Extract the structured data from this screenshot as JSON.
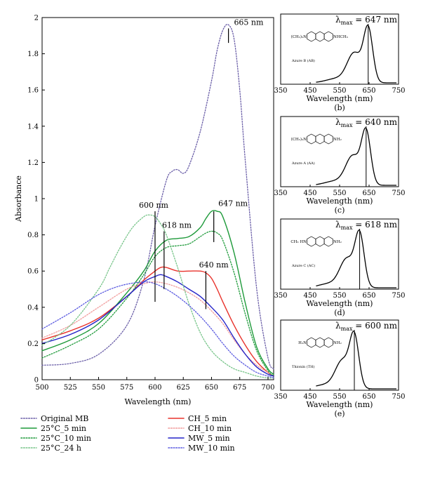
{
  "main_chart": {
    "type": "line",
    "xlabel": "Wavelength (nm)",
    "ylabel": "Absorbance",
    "xlim": [
      500,
      705
    ],
    "ylim": [
      0,
      2
    ],
    "xticks": [
      500,
      525,
      550,
      575,
      600,
      625,
      650,
      675,
      700
    ],
    "yticks": [
      0,
      0.2,
      0.4,
      0.6,
      0.8,
      1,
      1.2,
      1.4,
      1.6,
      1.8,
      2
    ],
    "xtick_labels": [
      "500",
      "525",
      "550",
      "575",
      "600",
      "625",
      "650",
      "675",
      "700"
    ],
    "ytick_labels": [
      "0",
      "0.2",
      "0.4",
      "0.6",
      "0.8",
      "1",
      "1.2",
      "1.4",
      "1.6",
      "1.8",
      "2"
    ],
    "annotations": [
      {
        "text": "665 nm",
        "x": 665,
        "y": 1.93
      },
      {
        "text": "647 nm",
        "x": 653,
        "y": 0.93
      },
      {
        "text": "600 nm",
        "x": 601,
        "y": 0.92
      },
      {
        "text": "618 nm",
        "x": 607,
        "y": 0.82
      },
      {
        "text": "640 nm",
        "x": 647,
        "y": 0.58
      }
    ],
    "series": [
      {
        "name": "Original MB",
        "color": "#6b5fa8",
        "style": "dotted",
        "x": [
          500,
          525,
          550,
          575,
          590,
          600,
          610,
          615,
          620,
          625,
          630,
          640,
          650,
          655,
          660,
          665,
          670,
          675,
          680,
          690,
          700,
          705
        ],
        "y": [
          0.08,
          0.09,
          0.14,
          0.3,
          0.55,
          0.85,
          1.1,
          1.15,
          1.16,
          1.14,
          1.18,
          1.37,
          1.65,
          1.82,
          1.93,
          1.96,
          1.88,
          1.6,
          1.2,
          0.5,
          0.12,
          0.06
        ]
      },
      {
        "name": "CH_5 min",
        "color": "#e8322b",
        "style": "solid",
        "x": [
          500,
          525,
          550,
          575,
          590,
          600,
          605,
          610,
          620,
          630,
          640,
          645,
          650,
          655,
          660,
          670,
          680,
          690,
          700,
          705
        ],
        "y": [
          0.22,
          0.27,
          0.34,
          0.46,
          0.55,
          0.6,
          0.62,
          0.62,
          0.6,
          0.6,
          0.6,
          0.59,
          0.56,
          0.5,
          0.43,
          0.3,
          0.19,
          0.1,
          0.04,
          0.02
        ]
      },
      {
        "name": "25°C_5 min",
        "color": "#1e9a3a",
        "style": "solid",
        "x": [
          500,
          525,
          550,
          575,
          590,
          600,
          610,
          620,
          630,
          640,
          645,
          650,
          655,
          660,
          670,
          680,
          690,
          700,
          705
        ],
        "y": [
          0.16,
          0.22,
          0.31,
          0.48,
          0.6,
          0.71,
          0.77,
          0.78,
          0.79,
          0.84,
          0.89,
          0.93,
          0.93,
          0.9,
          0.7,
          0.42,
          0.18,
          0.06,
          0.03
        ]
      },
      {
        "name": "CH_10 min",
        "color": "#f19a9a",
        "style": "dotted",
        "x": [
          500,
          525,
          550,
          575,
          590,
          600,
          610,
          620,
          630,
          640,
          650,
          660,
          670,
          680,
          690,
          700,
          705
        ],
        "y": [
          0.23,
          0.3,
          0.4,
          0.5,
          0.53,
          0.54,
          0.53,
          0.51,
          0.48,
          0.44,
          0.38,
          0.31,
          0.22,
          0.14,
          0.08,
          0.04,
          0.02
        ]
      },
      {
        "name": "25°C_10 min",
        "color": "#1e9a3a",
        "style": "dotted",
        "x": [
          500,
          525,
          550,
          575,
          590,
          600,
          610,
          620,
          630,
          640,
          645,
          650,
          655,
          660,
          670,
          680,
          690,
          700,
          705
        ],
        "y": [
          0.12,
          0.19,
          0.28,
          0.45,
          0.58,
          0.68,
          0.73,
          0.74,
          0.75,
          0.79,
          0.81,
          0.82,
          0.81,
          0.77,
          0.59,
          0.36,
          0.16,
          0.05,
          0.02
        ]
      },
      {
        "name": "MW_5 min",
        "color": "#2424c8",
        "style": "solid",
        "x": [
          500,
          525,
          550,
          575,
          590,
          600,
          605,
          610,
          620,
          630,
          640,
          650,
          660,
          670,
          680,
          690,
          700,
          705
        ],
        "y": [
          0.2,
          0.25,
          0.33,
          0.46,
          0.54,
          0.57,
          0.58,
          0.57,
          0.54,
          0.5,
          0.46,
          0.4,
          0.33,
          0.23,
          0.14,
          0.07,
          0.03,
          0.02
        ]
      },
      {
        "name": "25°C_24 h",
        "color": "#76c488",
        "style": "dotted",
        "x": [
          500,
          525,
          550,
          560,
          570,
          580,
          590,
          595,
          600,
          605,
          610,
          620,
          630,
          640,
          650,
          660,
          670,
          680,
          690,
          700,
          705
        ],
        "y": [
          0.19,
          0.3,
          0.5,
          0.62,
          0.74,
          0.84,
          0.9,
          0.91,
          0.9,
          0.86,
          0.8,
          0.62,
          0.42,
          0.26,
          0.16,
          0.1,
          0.06,
          0.04,
          0.02,
          0.01,
          0.01
        ]
      },
      {
        "name": "MW_10 min",
        "color": "#5a5ae0",
        "style": "dotted",
        "x": [
          500,
          525,
          550,
          570,
          590,
          600,
          610,
          620,
          630,
          640,
          650,
          660,
          670,
          680,
          690,
          700,
          705
        ],
        "y": [
          0.28,
          0.37,
          0.47,
          0.52,
          0.54,
          0.53,
          0.5,
          0.46,
          0.41,
          0.35,
          0.28,
          0.2,
          0.13,
          0.08,
          0.04,
          0.02,
          0.01
        ]
      }
    ]
  },
  "legend_order": [
    "Original MB",
    "CH_5 min",
    "25°C_5 min",
    "CH_10 min",
    "25°C_10 min",
    "MW_5 min",
    "25°C_24 h",
    "MW_10 min"
  ],
  "legend_labels": [
    "Original MB",
    "CH_5 min",
    "25°C_5 min",
    "CH_10 min",
    "25°C_10 min",
    "MW_5 min",
    "25°C_24 h",
    "MW_10 min"
  ],
  "panels": [
    {
      "id": "(b)",
      "lambda_label": "λ",
      "lambda_sub": "max",
      "lambda_value": " = 647 nm",
      "compound": "Azure B (AB)",
      "left_group": "(CH₃)₂N",
      "right_group": "NHCH₃",
      "peak": 647,
      "shoulder": 600,
      "xlabel": "Wavelength (nm)",
      "xticks": [
        "350",
        "450",
        "550",
        "650",
        "750"
      ]
    },
    {
      "id": "(c)",
      "lambda_label": "λ",
      "lambda_sub": "max",
      "lambda_value": " = 640 nm",
      "compound": "Azure A (AA)",
      "left_group": "(CH₃)₂N",
      "right_group": "NH₂",
      "peak": 640,
      "shoulder": 595,
      "xlabel": "Wavelength (nm)",
      "xticks": [
        "350",
        "450",
        "550",
        "650",
        "750"
      ]
    },
    {
      "id": "(d)",
      "lambda_label": "λ",
      "lambda_sub": "max",
      "lambda_value": " = 618 nm",
      "compound": "Azure C (AC)",
      "left_group": "CH₃ HN",
      "right_group": "NH₂",
      "peak": 618,
      "shoulder": 575,
      "xlabel": "Wavelength (nm)",
      "xticks": [
        "350",
        "450",
        "550",
        "650",
        "750"
      ]
    },
    {
      "id": "(e)",
      "lambda_label": "λ",
      "lambda_sub": "max",
      "lambda_value": " = 600 nm",
      "compound": "Thionin (TH)",
      "left_group": "H₂N",
      "right_group": "NH₂",
      "peak": 600,
      "shoulder": 560,
      "xlabel": "Wavelength (nm)",
      "xticks": [
        "350",
        "450",
        "550",
        "650",
        "750"
      ]
    }
  ]
}
